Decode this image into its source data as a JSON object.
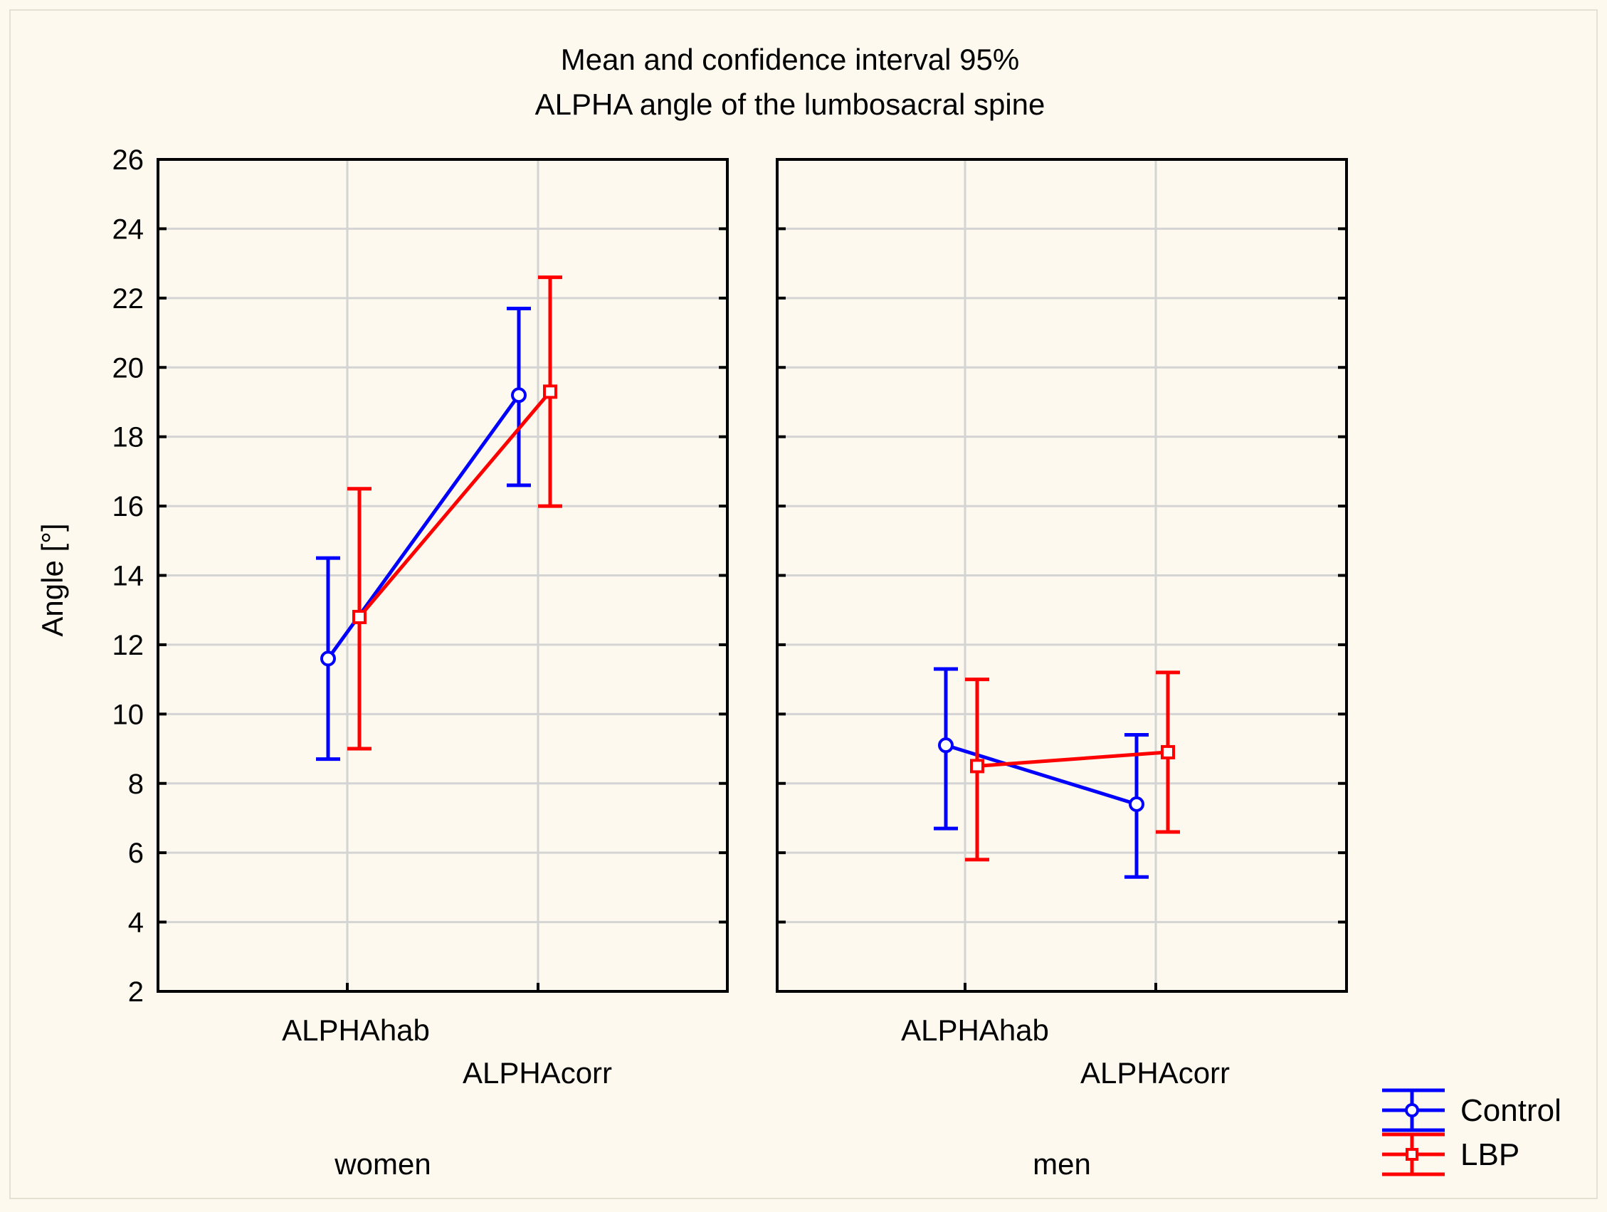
{
  "chart_data": {
    "type": "line",
    "title": "Mean and confidence interval 95%",
    "subtitle": "ALPHA  angle of the lumbosacral spine",
    "ylabel": "Angle [°]",
    "ylim": [
      2,
      26
    ],
    "yticks": [
      2,
      4,
      6,
      8,
      10,
      12,
      14,
      16,
      18,
      20,
      22,
      24,
      26
    ],
    "grid": true,
    "categories": [
      "ALPHAhab",
      "ALPHAcorr"
    ],
    "legend_position": "bottom-right",
    "panels": [
      {
        "label": "women",
        "series": [
          {
            "name": "Control",
            "color": "#0000ff",
            "marker": "circle",
            "means": [
              11.6,
              19.2
            ],
            "lower": [
              8.7,
              16.6
            ],
            "upper": [
              14.5,
              21.7
            ]
          },
          {
            "name": "LBP",
            "color": "#ff0000",
            "marker": "square",
            "means": [
              12.8,
              19.3
            ],
            "lower": [
              9.0,
              16.0
            ],
            "upper": [
              16.5,
              22.6
            ]
          }
        ]
      },
      {
        "label": "men",
        "series": [
          {
            "name": "Control",
            "color": "#0000ff",
            "marker": "circle",
            "means": [
              9.1,
              7.4
            ],
            "lower": [
              6.7,
              5.3
            ],
            "upper": [
              11.3,
              9.4
            ]
          },
          {
            "name": "LBP",
            "color": "#ff0000",
            "marker": "square",
            "means": [
              8.5,
              8.9
            ],
            "lower": [
              5.8,
              6.6
            ],
            "upper": [
              11.0,
              11.2
            ]
          }
        ]
      }
    ],
    "legend": [
      {
        "name": "Control",
        "color": "#0000ff",
        "marker": "circle"
      },
      {
        "name": "LBP",
        "color": "#ff0000",
        "marker": "square"
      }
    ]
  }
}
